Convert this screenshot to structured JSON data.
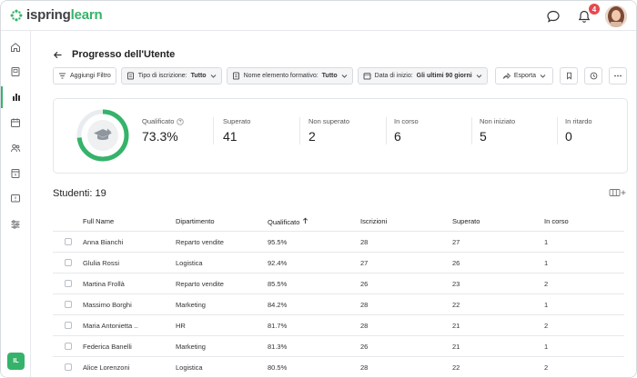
{
  "brand": {
    "name_part1": "ispring",
    "name_part2": "learn",
    "accent": "#35b36a"
  },
  "header": {
    "notifications_count": "4",
    "user_initials": "IL"
  },
  "page": {
    "title": "Progresso dell'Utente"
  },
  "filters": {
    "add_filter": "Aggiungi Filtro",
    "items": [
      {
        "label": "Tipo di iscrizione:",
        "value": "Tutto"
      },
      {
        "label": "Nome elemento formativo:",
        "value": "Tutto"
      },
      {
        "label": "Data di inizio:",
        "value": "Gli ultimi 90 giorni"
      }
    ],
    "export_label": "Esporta"
  },
  "stats": {
    "qualified_fraction": 0.733,
    "items": [
      {
        "label": "Qualificato",
        "value": "73.3%"
      },
      {
        "label": "Superato",
        "value": "41"
      },
      {
        "label": "Non superato",
        "value": "2"
      },
      {
        "label": "In corso",
        "value": "6"
      },
      {
        "label": "Non iniziato",
        "value": "5"
      },
      {
        "label": "In ritardo",
        "value": "0"
      }
    ]
  },
  "students": {
    "title": "Studenti: 19",
    "columns": [
      "Full Name",
      "Dipartimento",
      "Qualificato",
      "Iscrizioni",
      "Superato",
      "In corso"
    ],
    "rows": [
      [
        "Anna Bianchi",
        "Reparto vendite",
        "95.5%",
        "28",
        "27",
        "1"
      ],
      [
        "Glulia Rossi",
        "Logistica",
        "92.4%",
        "27",
        "26",
        "1"
      ],
      [
        "Martina Frollà",
        "Reparto vendite",
        "85.5%",
        "26",
        "23",
        "2"
      ],
      [
        "Massimo Borghi",
        "Marketing",
        "84.2%",
        "28",
        "22",
        "1"
      ],
      [
        "Maria Antonietta ..",
        "HR",
        "81.7%",
        "28",
        "21",
        "2"
      ],
      [
        "Federica Banelli",
        "Marketing",
        "81.3%",
        "26",
        "21",
        "1"
      ],
      [
        "Alice Lorenzoni",
        "Logistica",
        "80.5%",
        "28",
        "22",
        "2"
      ]
    ]
  }
}
